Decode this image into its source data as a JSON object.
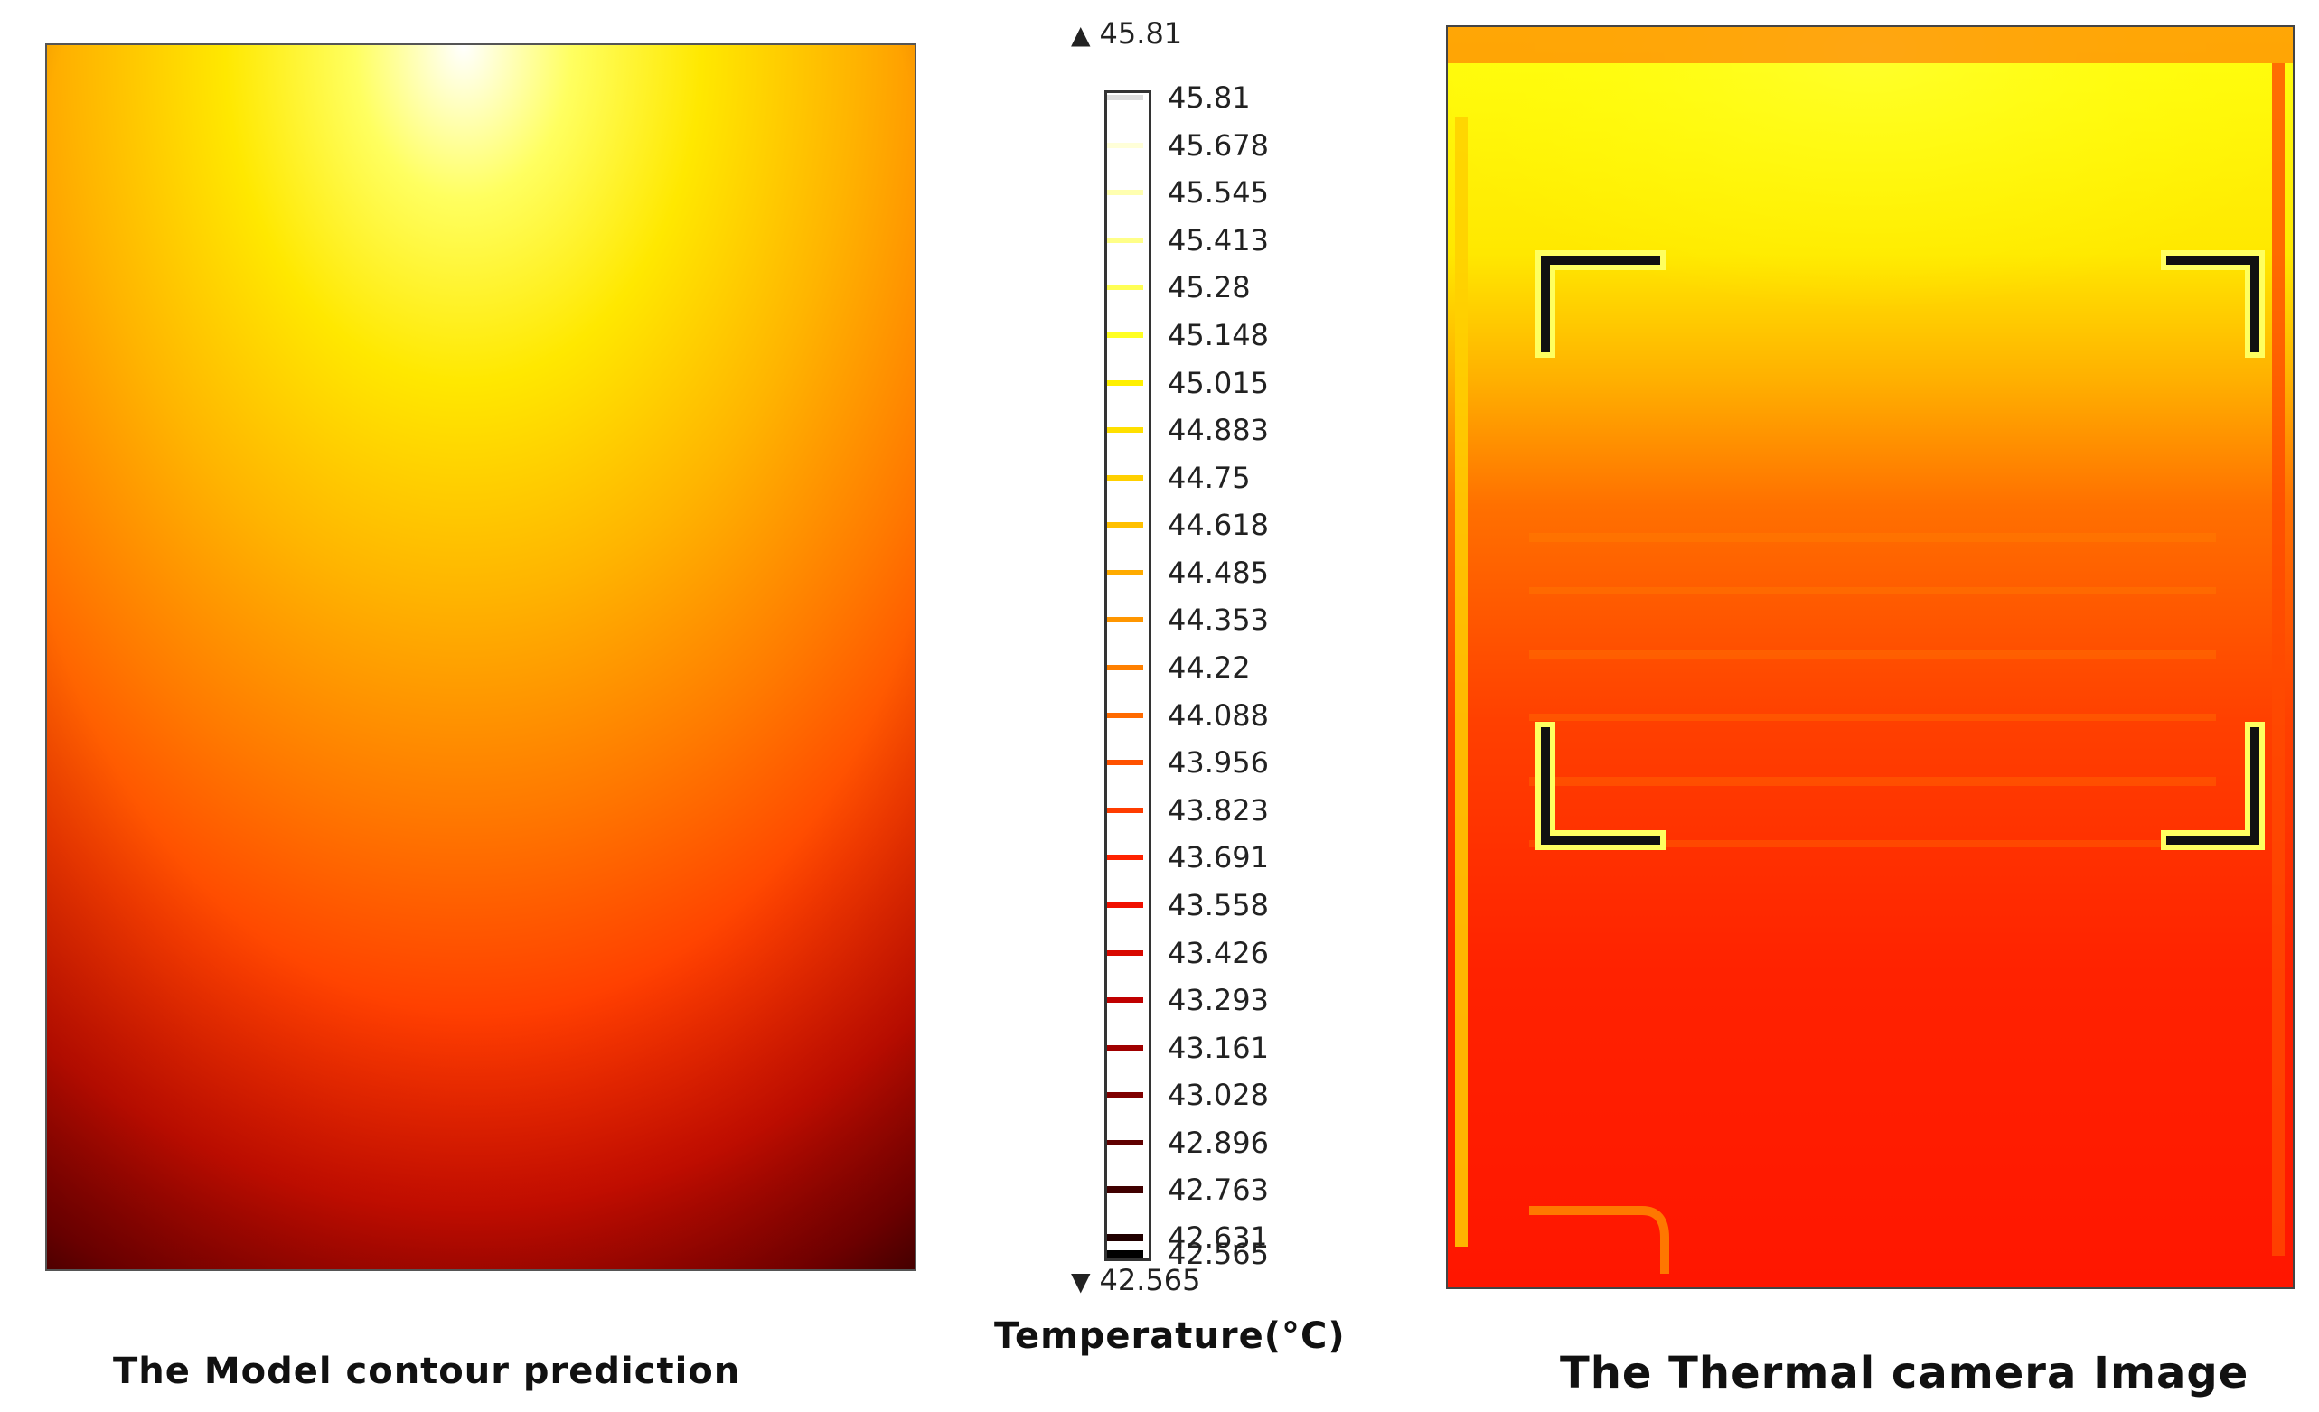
{
  "model_panel": {
    "caption": "The Model contour prediction"
  },
  "camera_panel": {
    "caption": "The Thermal camera Image"
  },
  "legend": {
    "title": "Temperature(°C)",
    "max_label": "45.81",
    "min_label": "42.565",
    "ticks": [
      {
        "label": "45.81",
        "color": "#ffffff"
      },
      {
        "label": "45.678",
        "color": "#ffffd8"
      },
      {
        "label": "45.545",
        "color": "#ffffb0"
      },
      {
        "label": "45.413",
        "color": "#ffff88"
      },
      {
        "label": "45.28",
        "color": "#ffff55"
      },
      {
        "label": "45.148",
        "color": "#ffff22"
      },
      {
        "label": "45.015",
        "color": "#fff000"
      },
      {
        "label": "44.883",
        "color": "#ffe000"
      },
      {
        "label": "44.75",
        "color": "#ffd000"
      },
      {
        "label": "44.618",
        "color": "#ffc000"
      },
      {
        "label": "44.485",
        "color": "#ffab00"
      },
      {
        "label": "44.353",
        "color": "#ff9600"
      },
      {
        "label": "44.22",
        "color": "#ff8000"
      },
      {
        "label": "44.088",
        "color": "#ff6a00"
      },
      {
        "label": "43.956",
        "color": "#ff5200"
      },
      {
        "label": "43.823",
        "color": "#ff3c00"
      },
      {
        "label": "43.691",
        "color": "#ff2200"
      },
      {
        "label": "43.558",
        "color": "#f01000"
      },
      {
        "label": "43.426",
        "color": "#d80800"
      },
      {
        "label": "43.293",
        "color": "#c00000"
      },
      {
        "label": "43.161",
        "color": "#a00000"
      },
      {
        "label": "43.028",
        "color": "#800000"
      },
      {
        "label": "42.896",
        "color": "#600000"
      },
      {
        "label": "42.763",
        "color": "#400000"
      },
      {
        "label": "42.631",
        "color": "#200000"
      },
      {
        "label": "42.565",
        "color": "#000000"
      }
    ]
  },
  "colors": {
    "hot_white": "#ffffff",
    "yellow": "#ffff00",
    "orange": "#ff8c00",
    "red": "#ff1a00",
    "dark": "#000000"
  }
}
